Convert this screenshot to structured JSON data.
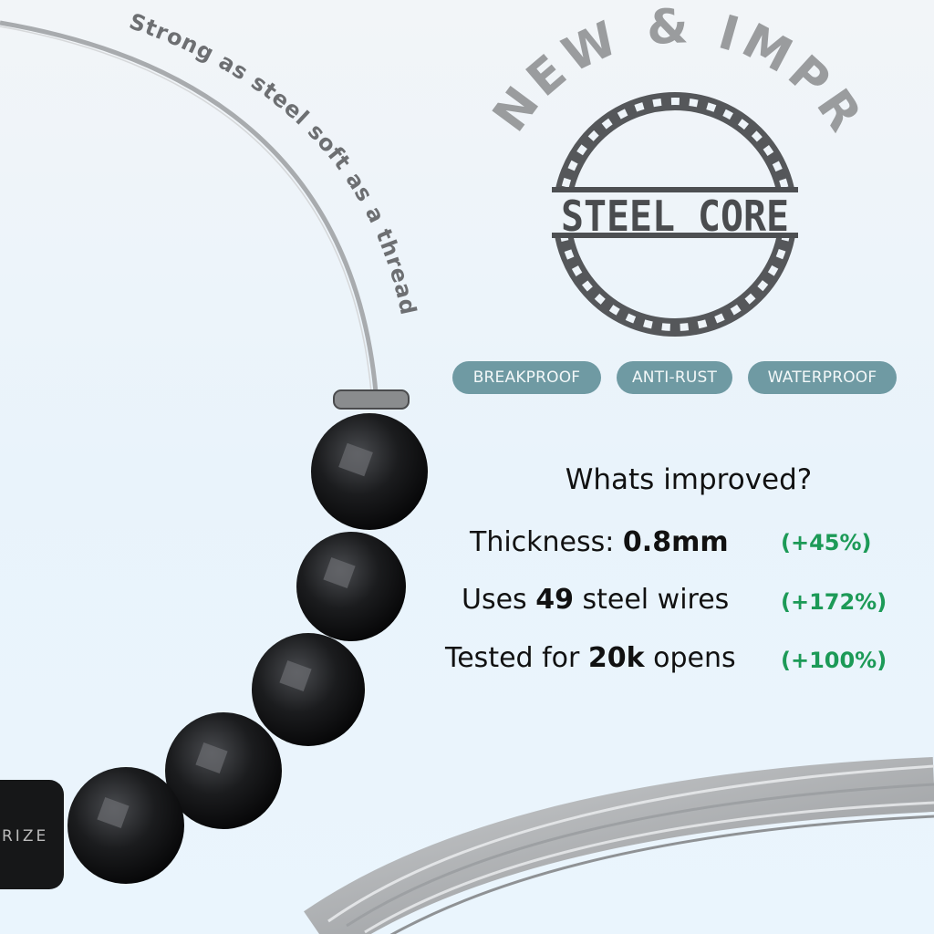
{
  "curved_caption": "Strong as steel soft as a thread",
  "badge": {
    "arc_text": "NEW & IMPROVED",
    "logo_text": "STEEL CORE",
    "ring_color": "#55575a",
    "arc_color": "#9a9c9e"
  },
  "features": [
    "BREAKPROOF",
    "ANTI-RUST",
    "WATERPROOF"
  ],
  "pill_color": "#6f9aa3",
  "improvements": {
    "heading": "Whats improved?",
    "rows": [
      {
        "prefix": "Thickness: ",
        "value": "0.8mm",
        "suffix": "",
        "change": "(+45%)"
      },
      {
        "prefix": "Uses ",
        "value": "49",
        "suffix": " steel wires",
        "change": "(+172%)"
      },
      {
        "prefix": "Tested for ",
        "value": "20k",
        "suffix": " opens",
        "change": "(+100%)"
      }
    ],
    "change_color": "#1c9a57"
  },
  "clasp_text": "RIZE"
}
